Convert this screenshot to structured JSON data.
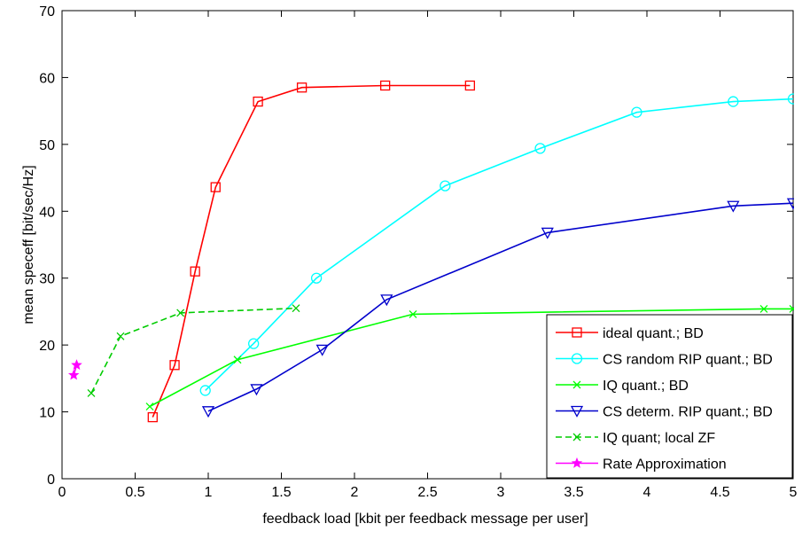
{
  "chart_data": {
    "type": "line",
    "title": "",
    "xlabel": "feedback load [kbit per feedback message per user]",
    "ylabel": "mean speceff [bit/sec/Hz]",
    "xlim": [
      0,
      5
    ],
    "ylim": [
      0,
      70
    ],
    "x_ticks": [
      "0",
      "0.5",
      "1",
      "1.5",
      "2",
      "2.5",
      "3",
      "3.5",
      "4",
      "4.5",
      "5"
    ],
    "y_ticks": [
      "0",
      "10",
      "20",
      "30",
      "40",
      "50",
      "60",
      "70"
    ],
    "grid": false,
    "legend_position": "bottom-right",
    "series": [
      {
        "name": "ideal quant.; BD",
        "color": "#ff0000",
        "marker": "square",
        "line_style": "solid",
        "x": [
          0.62,
          0.77,
          0.91,
          1.05,
          1.34,
          1.64,
          2.21,
          2.79
        ],
        "y": [
          9.2,
          17.0,
          31.0,
          43.6,
          56.4,
          58.5,
          58.8,
          58.8
        ]
      },
      {
        "name": "CS random RIP quant.; BD",
        "color": "#00ffff",
        "marker": "circle",
        "line_style": "solid",
        "x": [
          0.98,
          1.31,
          1.74,
          2.62,
          3.27,
          3.93,
          4.59,
          5.0
        ],
        "y": [
          13.2,
          20.2,
          30.0,
          43.8,
          49.4,
          54.8,
          56.4,
          56.8
        ]
      },
      {
        "name": "IQ quant.; BD",
        "color": "#00ff00",
        "marker": "x",
        "line_style": "solid",
        "x": [
          0.6,
          1.2,
          2.4,
          4.8,
          5.0
        ],
        "y": [
          10.8,
          17.8,
          24.6,
          25.4,
          25.4
        ]
      },
      {
        "name": "CS determ. RIP quant.; BD",
        "color": "#0000cc",
        "marker": "triangle-down",
        "line_style": "solid",
        "x": [
          1.0,
          1.33,
          1.78,
          2.22,
          3.32,
          4.59,
          5.0
        ],
        "y": [
          10.1,
          13.4,
          19.3,
          26.8,
          36.8,
          40.8,
          41.2
        ]
      },
      {
        "name": "IQ quant; local ZF",
        "color": "#00cc00",
        "marker": "x",
        "line_style": "dashed",
        "x": [
          0.2,
          0.4,
          0.81,
          1.6
        ],
        "y": [
          12.8,
          21.3,
          24.8,
          25.5
        ]
      },
      {
        "name": "Rate Approximation",
        "color": "#ff00ff",
        "marker": "star",
        "line_style": "solid",
        "x": [
          0.08,
          0.1
        ],
        "y": [
          15.5,
          17.0
        ]
      }
    ]
  }
}
